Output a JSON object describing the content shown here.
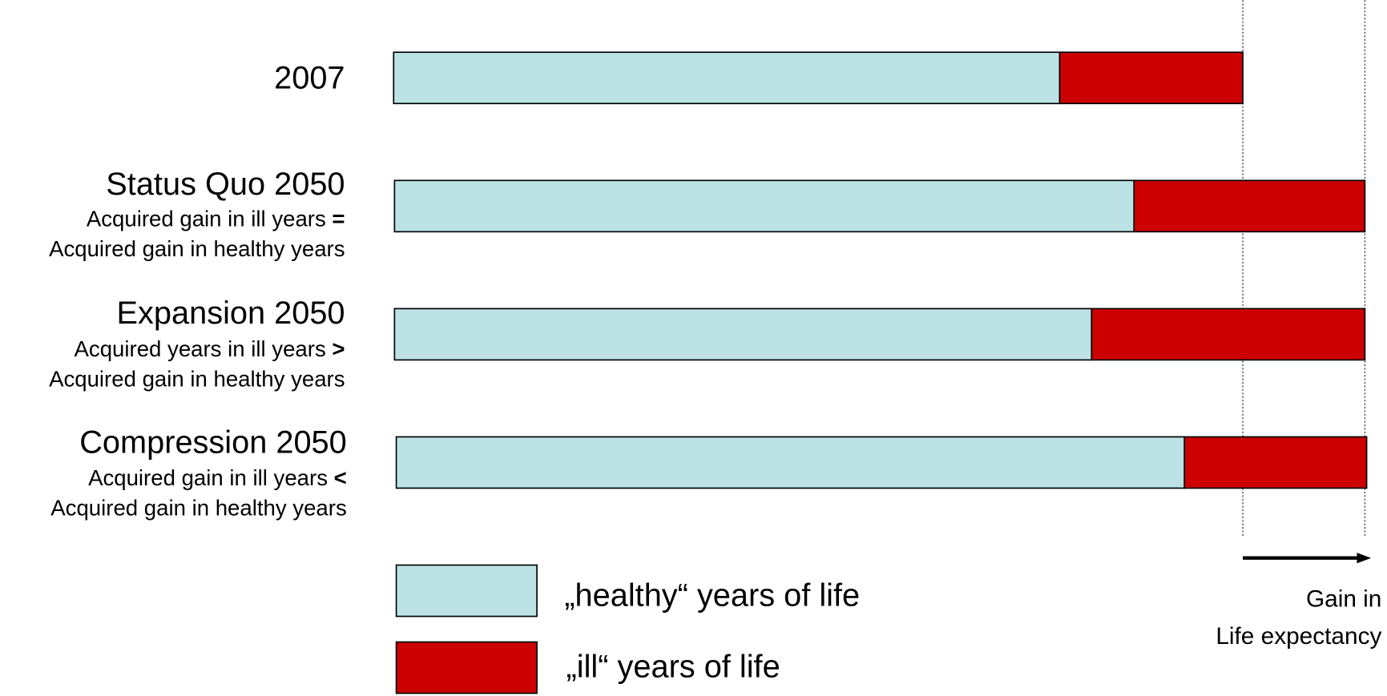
{
  "rows": [
    {
      "label": "2007"
    },
    {
      "label": "Status Quo 2050",
      "line1": "Acquired gain in ill years ",
      "symbol": "=",
      "line2": "Acquired gain in healthy years"
    },
    {
      "label": "Expansion 2050",
      "line1": "Acquired years in ill years ",
      "symbol": ">",
      "line2": "Acquired gain in healthy years"
    },
    {
      "label": "Compression 2050",
      "line1": "Acquired gain in ill years ",
      "symbol": "<",
      "line2": "Acquired gain in healthy years"
    }
  ],
  "legend": [
    "„healthy“ years of life",
    "„ill“ years of life"
  ],
  "note": [
    "Gain in",
    "Life expectancy"
  ]
}
